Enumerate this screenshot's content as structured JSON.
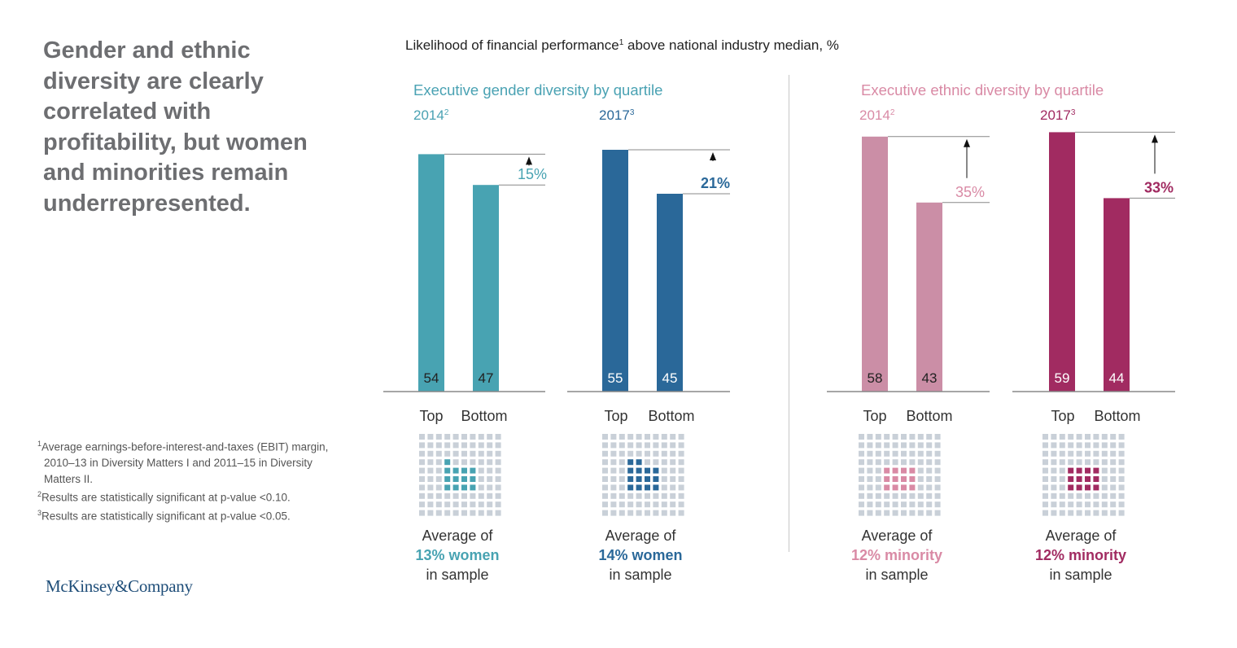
{
  "headline": "Gender and ethnic diversity are clearly correlated with profitability, but women and minorities remain underrepresented.",
  "footnotes": [
    {
      "marker": "1",
      "text": "Average earnings-before-interest-and-taxes (EBIT) margin, 2010–13 in Diversity Matters I and 2011–15 in Diversity Matters II."
    },
    {
      "marker": "2",
      "text": "Results are statistically significant at p-value <0.10."
    },
    {
      "marker": "3",
      "text": "Results are statistically significant at p-value <0.05."
    }
  ],
  "logo": "McKinsey&Company",
  "chart_data": {
    "type": "bar",
    "title": "Likelihood of financial performance above national industry median, %",
    "title_parts": {
      "before": "Likelihood of financial performance",
      "sup": "1",
      "after": " above national industry median, %"
    },
    "categories": [
      "Top",
      "Bottom"
    ],
    "ylim": [
      0,
      60
    ],
    "groups": [
      {
        "title": "Executive gender diversity by quartile",
        "title_color": "#4aa2b3",
        "panels": [
          {
            "year": "2014",
            "sup": "2",
            "values": [
              54,
              47
            ],
            "diff_label": "15%",
            "color": "#48a3b2",
            "sample_prefix": "Average of",
            "sample_highlight": "13% women",
            "sample_suffix": "in sample",
            "highlight_color": "#48a3b2",
            "year_color": "#4aa2b3",
            "label_color": "#222222",
            "highlight_count": 13
          },
          {
            "year": "2017",
            "sup": "3",
            "values": [
              55,
              45
            ],
            "diff_label": "21%",
            "color": "#2a6899",
            "sample_prefix": "Average of",
            "sample_highlight": "14% women",
            "sample_suffix": "in sample",
            "highlight_color": "#2a6899",
            "year_color": "#2a6899",
            "label_color": "#ffffff",
            "highlight_count": 14
          }
        ]
      },
      {
        "title": "Executive ethnic diversity by quartile",
        "title_color": "#d98aa5",
        "panels": [
          {
            "year": "2014",
            "sup": "2",
            "values": [
              58,
              43
            ],
            "diff_label": "35%",
            "color": "#cb8ea6",
            "sample_prefix": "Average of",
            "sample_highlight": "12% minority",
            "sample_suffix": "in sample",
            "highlight_color": "#d98aa5",
            "year_color": "#d98aa5",
            "label_color": "#222222",
            "highlight_count": 12
          },
          {
            "year": "2017",
            "sup": "3",
            "values": [
              59,
              44
            ],
            "diff_label": "33%",
            "color": "#a12b61",
            "sample_prefix": "Average of",
            "sample_highlight": "12% minority",
            "sample_suffix": "in sample",
            "highlight_color": "#a12b61",
            "year_color": "#a12b61",
            "label_color": "#ffffff",
            "highlight_count": 12
          }
        ]
      }
    ]
  }
}
